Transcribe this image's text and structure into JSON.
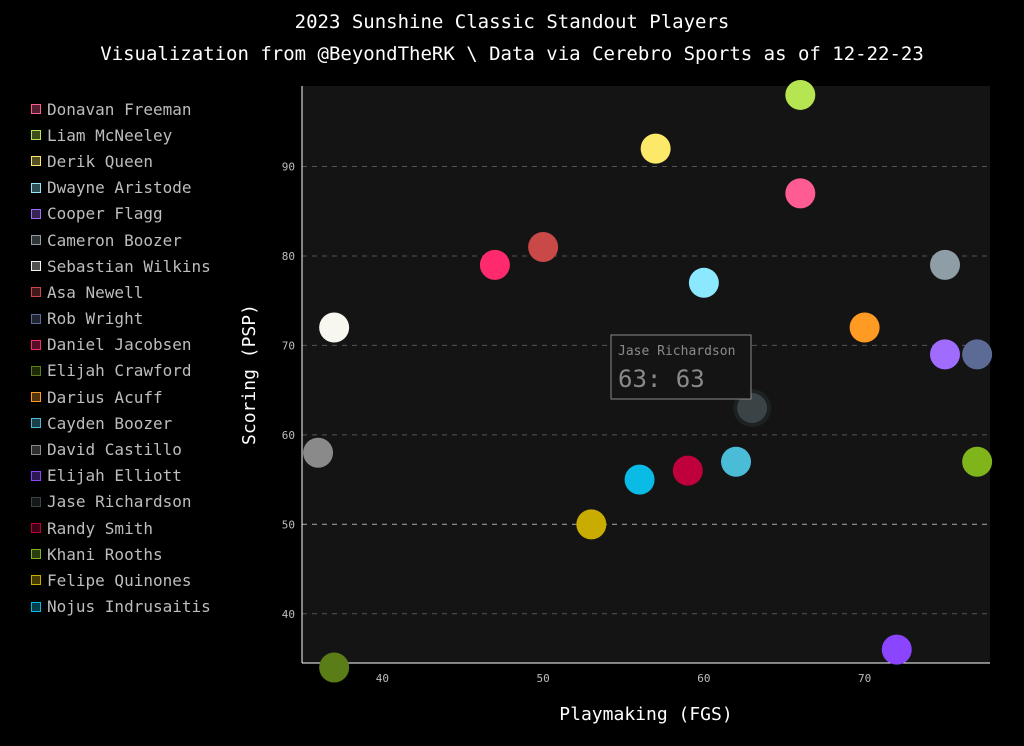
{
  "chart_data": {
    "type": "scatter",
    "title": "2023 Sunshine Classic Standout Players",
    "subtitle": "Visualization from @BeyondTheRK \\ Data via Cerebro Sports as of 12-22-23",
    "xlabel": "Playmaking (FGS)",
    "ylabel": "Scoring (PSP)",
    "xlim": [
      35,
      77.8
    ],
    "ylim": [
      34.5,
      99
    ],
    "xticks": [
      40,
      50,
      60,
      70
    ],
    "yticks": [
      40,
      50,
      60,
      70,
      80,
      90
    ],
    "grid": "horizontal dashed",
    "legend_position": "left",
    "background": "#141414",
    "series": [
      {
        "name": "Donavan Freeman",
        "x": 66,
        "y": 87,
        "color": "#ff5c93"
      },
      {
        "name": "Liam McNeeley",
        "x": 66,
        "y": 98,
        "color": "#b5e550"
      },
      {
        "name": "Derik Queen",
        "x": 57,
        "y": 92,
        "color": "#fce96a"
      },
      {
        "name": "Dwayne Aristode",
        "x": 60,
        "y": 77,
        "color": "#8ce8ff"
      },
      {
        "name": "Cooper Flagg",
        "x": 75,
        "y": 69,
        "color": "#9f6cfd"
      },
      {
        "name": "Cameron Boozer",
        "x": 75,
        "y": 79,
        "color": "#8f9ea6"
      },
      {
        "name": "Sebastian Wilkins",
        "x": 37,
        "y": 72,
        "color": "#f7f7f0"
      },
      {
        "name": "Asa Newell",
        "x": 50,
        "y": 81,
        "color": "#c94848"
      },
      {
        "name": "Rob Wright",
        "x": 77,
        "y": 69,
        "color": "#5b6b96"
      },
      {
        "name": "Daniel Jacobsen",
        "x": 47,
        "y": 79,
        "color": "#ff2a6d"
      },
      {
        "name": "Elijah Crawford",
        "x": 37,
        "y": 34,
        "color": "#5a7d18"
      },
      {
        "name": "Darius Acuff",
        "x": 70,
        "y": 72,
        "color": "#ff9a22"
      },
      {
        "name": "Cayden Boozer",
        "x": 62,
        "y": 57,
        "color": "#4bbcd8"
      },
      {
        "name": "David Castillo",
        "x": 36,
        "y": 58,
        "color": "#8a8a8a"
      },
      {
        "name": "Elijah Elliott",
        "x": 72,
        "y": 36,
        "color": "#8b45ff"
      },
      {
        "name": "Jase Richardson",
        "x": 63,
        "y": 63,
        "color": "#3a4446"
      },
      {
        "name": "Randy Smith",
        "x": 59,
        "y": 56,
        "color": "#c0003c"
      },
      {
        "name": "Khani Rooths",
        "x": 77,
        "y": 57,
        "color": "#7fb41a"
      },
      {
        "name": "Felipe Quinones",
        "x": 53,
        "y": 50,
        "color": "#c8ad00"
      },
      {
        "name": "Nojus Indrusaitis",
        "x": 56,
        "y": 55,
        "color": "#0abbe6"
      }
    ],
    "highlighted": "Jase Richardson",
    "tooltip": {
      "name": "Jase Richardson",
      "value": "63: 63"
    }
  }
}
